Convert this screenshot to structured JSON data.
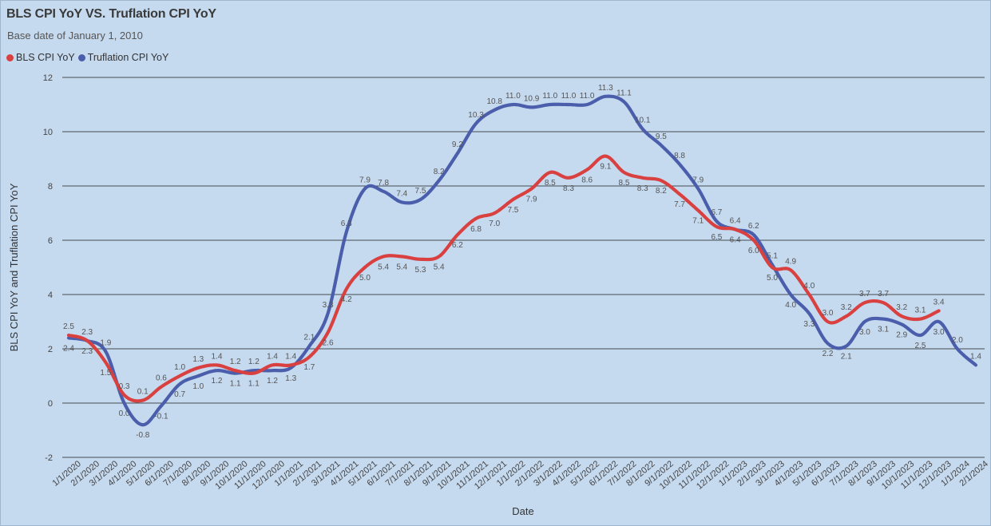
{
  "chart_data": {
    "type": "line",
    "title": "BLS CPI YoY VS. Truflation CPI YoY",
    "subtitle": "Base date of January 1, 2010",
    "xlabel": "Date",
    "ylabel": "BLS CPI YoY and Truflation CPI YoY",
    "ylim": [
      -2,
      12
    ],
    "yticks": [
      -2,
      0,
      2,
      4,
      6,
      8,
      10,
      12
    ],
    "grid": true,
    "legend_position": "top-left",
    "x": [
      "1/1/2020",
      "2/1/2020",
      "3/1/2020",
      "4/1/2020",
      "5/1/2020",
      "6/1/2020",
      "7/1/2020",
      "8/1/2020",
      "9/1/2020",
      "10/1/2020",
      "11/1/2020",
      "12/1/2020",
      "1/1/2021",
      "2/1/2021",
      "3/1/2021",
      "4/1/2021",
      "5/1/2021",
      "6/1/2021",
      "7/1/2021",
      "8/1/2021",
      "9/1/2021",
      "10/1/2021",
      "11/1/2021",
      "12/1/2021",
      "1/1/2022",
      "2/1/2022",
      "3/1/2022",
      "4/1/2022",
      "5/1/2022",
      "6/1/2022",
      "7/1/2022",
      "8/1/2022",
      "9/1/2022",
      "10/1/2022",
      "11/1/2022",
      "12/1/2022",
      "1/1/2023",
      "2/1/2023",
      "3/1/2023",
      "4/1/2023",
      "5/1/2023",
      "6/1/2023",
      "7/1/2023",
      "8/1/2023",
      "9/1/2023",
      "10/1/2023",
      "11/1/2023",
      "12/1/2023",
      "1/1/2024",
      "2/1/2024"
    ],
    "series": [
      {
        "name": "BLS CPI YoY",
        "color": "#d94040",
        "values": [
          2.5,
          2.3,
          1.5,
          0.3,
          0.1,
          0.6,
          1.0,
          1.3,
          1.4,
          1.2,
          1.1,
          1.4,
          1.4,
          1.7,
          2.6,
          4.2,
          5.0,
          5.4,
          5.4,
          5.3,
          5.4,
          6.2,
          6.8,
          7.0,
          7.5,
          7.9,
          8.5,
          8.3,
          8.6,
          9.1,
          8.5,
          8.3,
          8.2,
          7.7,
          7.1,
          6.5,
          6.4,
          6.0,
          5.0,
          4.9,
          4.0,
          3.0,
          3.2,
          3.7,
          3.7,
          3.2,
          3.1,
          3.4,
          null,
          null
        ]
      },
      {
        "name": "Truflation CPI YoY",
        "color": "#4a5eab",
        "values": [
          2.4,
          2.3,
          1.9,
          0.0,
          -0.8,
          -0.1,
          0.7,
          1.0,
          1.2,
          1.1,
          1.2,
          1.2,
          1.3,
          2.1,
          3.3,
          6.3,
          7.9,
          7.8,
          7.4,
          7.5,
          8.2,
          9.2,
          10.3,
          10.8,
          11.0,
          10.9,
          11.0,
          11.0,
          11.0,
          11.3,
          11.1,
          10.1,
          9.5,
          8.8,
          7.9,
          6.7,
          6.4,
          6.2,
          5.1,
          4.0,
          3.3,
          2.2,
          2.1,
          3.0,
          3.1,
          2.9,
          2.5,
          3.0,
          2.0,
          1.4
        ]
      }
    ]
  },
  "colors": {
    "background": "#c5d9ef",
    "grid": "#1a1a1a",
    "bls": "#d94040",
    "truflation": "#4a5eab"
  }
}
